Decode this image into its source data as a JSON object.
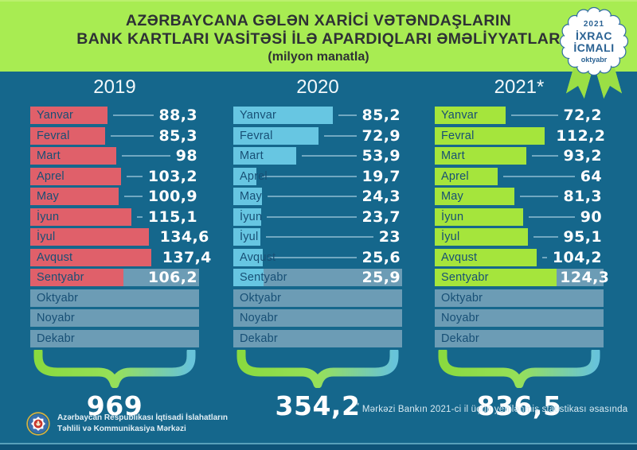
{
  "header": {
    "title_line1": "AZƏRBAYCANA GƏLƏN XARİCİ VƏTƏNDAŞLARIN",
    "title_line2": "BANK KARTLARI VASİTƏSİ İLƏ APARDIQLARI ƏMƏLİYYATLAR",
    "subtitle": "(milyon manatla)"
  },
  "badge": {
    "year": "2021",
    "title_line1": "İXRAC",
    "title_line2": "İCMALI",
    "month": "oktyabr"
  },
  "chart_data": {
    "type": "bar",
    "title": "AZƏRBAYCANA GƏLƏN XARİCİ VƏTƏNDAŞLARIN BANK KARTLARI VASİTƏSİ İLƏ APARDIQLARI ƏMƏLİYYATLAR",
    "subtitle": "(milyon manatla)",
    "unit": "milyon manat",
    "orientation": "horizontal",
    "categories": [
      "Yanvar",
      "Fevral",
      "Mart",
      "Aprel",
      "May",
      "İyun",
      "İyul",
      "Avqust",
      "Sentyabr",
      "Oktyabr",
      "Noyabr",
      "Dekabr"
    ],
    "current_month_index": 8,
    "empty_bar_color": "#6C9CB5",
    "background_color": "#15678C",
    "columns": [
      {
        "year": "2019",
        "bar_color": "#E0606A",
        "axis_max": 192,
        "values": [
          88.3,
          85.3,
          98,
          103.2,
          100.9,
          115.1,
          134.6,
          137.4,
          106.2,
          null,
          null,
          null
        ],
        "values_display": [
          "88,3",
          "85,3",
          "98",
          "103,2",
          "100,9",
          "115,1",
          "134,6",
          "137,4",
          "106,2",
          "",
          "",
          ""
        ],
        "total": 969,
        "total_display": "969"
      },
      {
        "year": "2020",
        "bar_color": "#67C6E2",
        "axis_max": 145,
        "values": [
          85.2,
          72.9,
          53.9,
          19.7,
          24.3,
          23.7,
          23,
          25.6,
          25.9,
          null,
          null,
          null
        ],
        "values_display": [
          "85,2",
          "72,9",
          "53,9",
          "19,7",
          "24,3",
          "23,7",
          "23",
          "25,6",
          "25,9",
          "",
          "",
          ""
        ],
        "total": 354.2,
        "total_display": "354,2"
      },
      {
        "year": "2021*",
        "bar_color": "#A5E53C",
        "axis_max": 172,
        "values": [
          72.2,
          112.2,
          93.2,
          64,
          81.3,
          90,
          95.1,
          104.2,
          124.3,
          null,
          null,
          null
        ],
        "values_display": [
          "72,2",
          "112,2",
          "93,2",
          "64",
          "81,3",
          "90",
          "95,1",
          "104,2",
          "124,3",
          "",
          "",
          ""
        ],
        "total": 836.5,
        "total_display": "836,5"
      }
    ]
  },
  "footnote": {
    "marker": "*",
    "text": "Mərkəzi Bankın 2021-ci il üçün yenilənmiş statistikası əsasında"
  },
  "footer": {
    "org_line1": "Azərbaycan Respublikası İqtisadi İslahatların",
    "org_line2": "Təhlili və Kommunikasiya Mərkəzi"
  }
}
